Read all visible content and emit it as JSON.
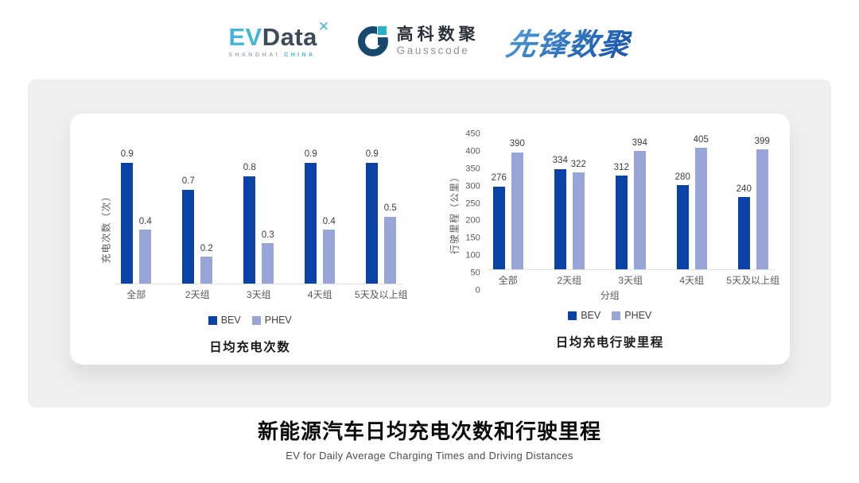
{
  "header": {
    "evdata": {
      "ev": "EV",
      "data": "Data",
      "mark": "✕",
      "sub_left": "SHANGHAI",
      "sub_right": "CHINA"
    },
    "gausscode": {
      "cn": "高科数聚",
      "en": "Gausscode"
    },
    "pioneer": "先锋数聚"
  },
  "chart_data": [
    {
      "type": "bar",
      "title": "日均充电次数",
      "ylabel": "充电次数（次）",
      "xlabel": "",
      "categories": [
        "全部",
        "2天组",
        "3天组",
        "4天组",
        "5天及以上组"
      ],
      "series": [
        {
          "name": "BEV",
          "color": "#0b42a6",
          "values": [
            0.9,
            0.7,
            0.8,
            0.9,
            0.9
          ]
        },
        {
          "name": "PHEV",
          "color": "#97a5d8",
          "values": [
            0.4,
            0.2,
            0.3,
            0.4,
            0.5
          ]
        }
      ],
      "ylim": [
        0,
        1.0
      ],
      "decimals": 1,
      "y_ticks": null,
      "grid": false,
      "legend_position": "bottom",
      "value_labels": true
    },
    {
      "type": "bar",
      "title": "日均充电行驶里程",
      "ylabel": "行驶里程（公里）",
      "xlabel": "分组",
      "categories": [
        "全部",
        "2天组",
        "3天组",
        "4天组",
        "5天及以上组"
      ],
      "series": [
        {
          "name": "BEV",
          "color": "#0b42a6",
          "values": [
            276,
            334,
            312,
            280,
            240
          ]
        },
        {
          "name": "PHEV",
          "color": "#97a5d8",
          "values": [
            390,
            322,
            394,
            405,
            399
          ]
        }
      ],
      "ylim": [
        0,
        450
      ],
      "decimals": 0,
      "y_ticks": [
        0,
        50,
        100,
        150,
        200,
        250,
        300,
        350,
        400,
        450
      ],
      "grid": false,
      "legend_position": "bottom",
      "value_labels": true
    }
  ],
  "footer": {
    "title": "新能源汽车日均充电次数和行驶里程",
    "subtitle": "EV for Daily Average Charging Times and Driving Distances"
  },
  "colors": {
    "bev": "#0b42a6",
    "phev": "#97a5d8",
    "panel": "#efefef",
    "card": "#ffffff",
    "evdata_cyan": "#45b6da",
    "evdata_slate": "#3d4a5a",
    "gausscode_navy": "#17486e",
    "gausscode_teal": "#2ab4c4",
    "pioneer_blue": "#2a6cc0"
  }
}
